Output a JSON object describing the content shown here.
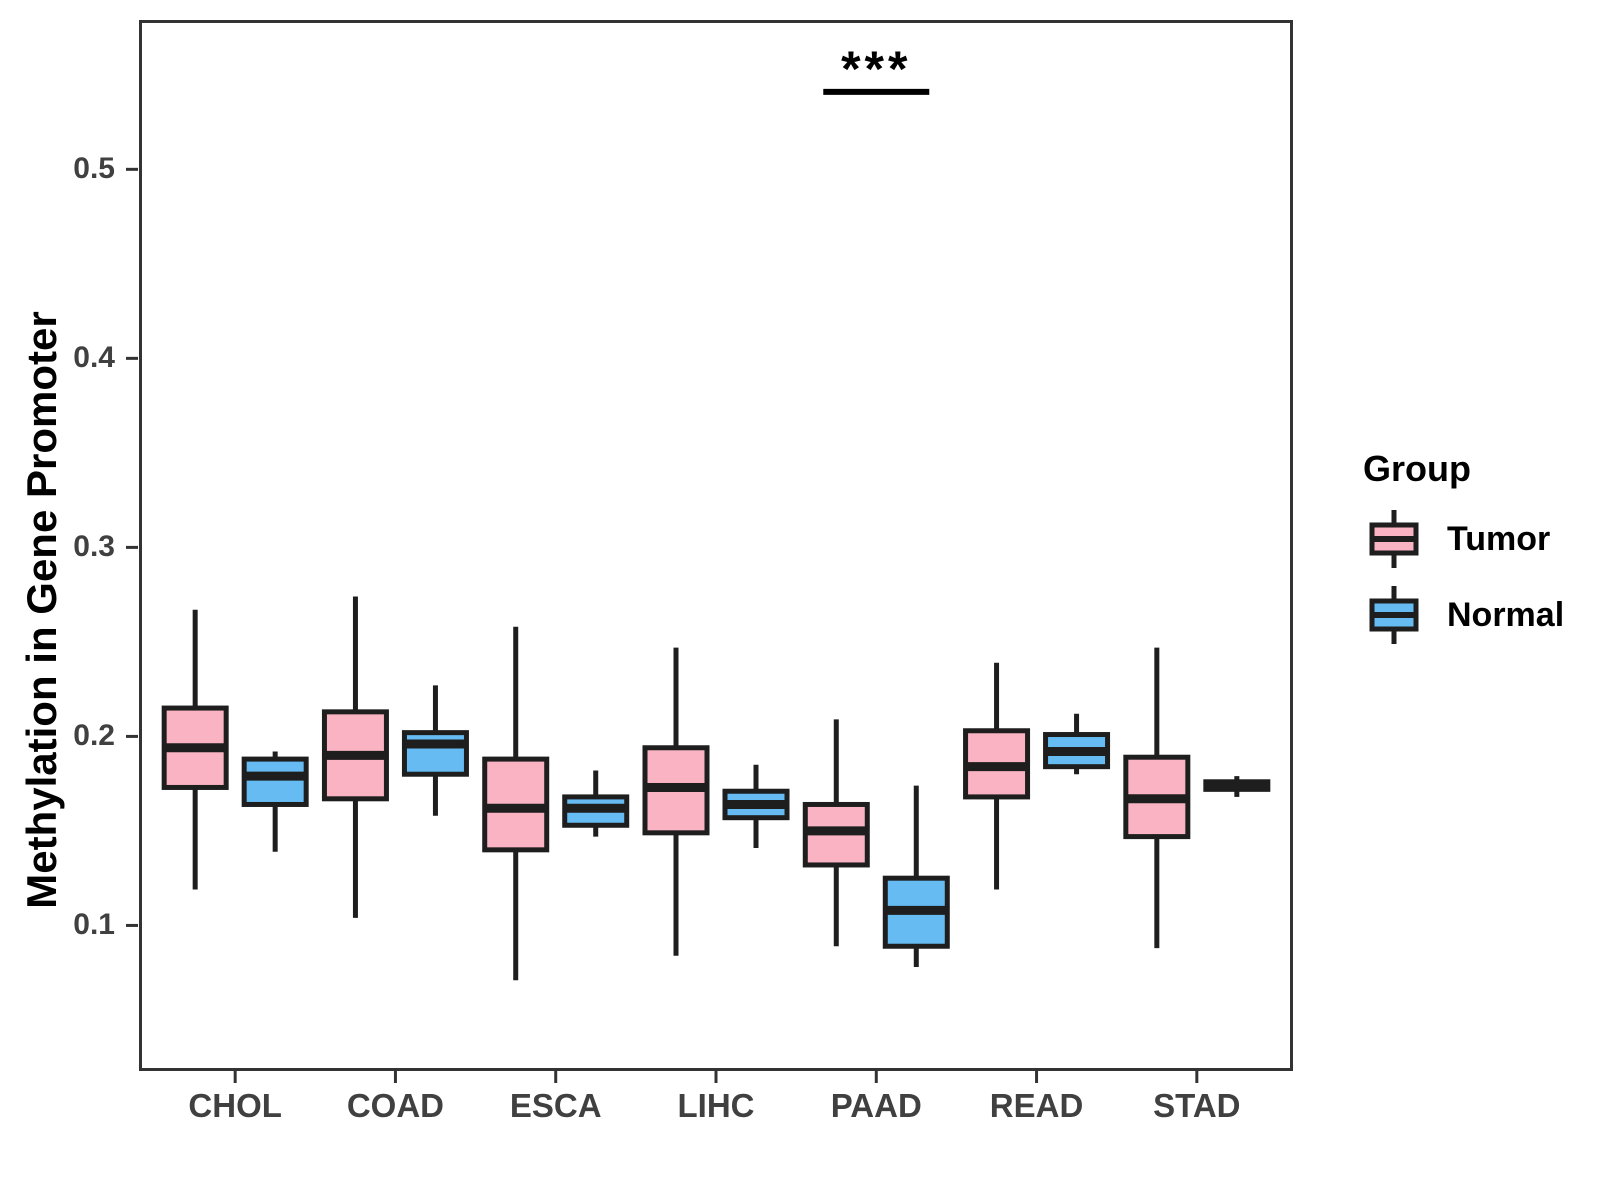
{
  "figure": {
    "ylabel": "Methylation in Gene Promoter"
  },
  "legend": {
    "title": "Group",
    "items": [
      {
        "label": "Tumor",
        "color": "#F9B3C2"
      },
      {
        "label": "Normal",
        "color": "#66BCF2"
      }
    ]
  },
  "style": {
    "box_border_color": "#1E1E1E",
    "axis_color": "#333333",
    "tick_text_color": "#404040"
  },
  "chart_data": {
    "type": "boxplot",
    "title": "",
    "xlabel": "",
    "ylabel": "Methylation in Gene Promoter",
    "categories": [
      "CHOL",
      "COAD",
      "ESCA",
      "LIHC",
      "PAAD",
      "READ",
      "STAD"
    ],
    "yticks": [
      0.1,
      0.2,
      0.3,
      0.4,
      0.5
    ],
    "ylim": [
      0.023,
      0.579
    ],
    "grid": false,
    "legend_position": "right",
    "series": [
      {
        "name": "Tumor",
        "color": "#F9B3C2",
        "boxes": [
          {
            "category": "CHOL",
            "min": 0.119,
            "q1": 0.173,
            "median": 0.194,
            "q3": 0.215,
            "max": 0.267
          },
          {
            "category": "COAD",
            "min": 0.104,
            "q1": 0.167,
            "median": 0.19,
            "q3": 0.213,
            "max": 0.274
          },
          {
            "category": "ESCA",
            "min": 0.071,
            "q1": 0.14,
            "median": 0.162,
            "q3": 0.188,
            "max": 0.258
          },
          {
            "category": "LIHC",
            "min": 0.084,
            "q1": 0.149,
            "median": 0.173,
            "q3": 0.194,
            "max": 0.247
          },
          {
            "category": "PAAD",
            "min": 0.089,
            "q1": 0.132,
            "median": 0.15,
            "q3": 0.164,
            "max": 0.209
          },
          {
            "category": "READ",
            "min": 0.119,
            "q1": 0.168,
            "median": 0.184,
            "q3": 0.203,
            "max": 0.239
          },
          {
            "category": "STAD",
            "min": 0.088,
            "q1": 0.147,
            "median": 0.167,
            "q3": 0.189,
            "max": 0.247
          }
        ]
      },
      {
        "name": "Normal",
        "color": "#66BCF2",
        "boxes": [
          {
            "category": "CHOL",
            "min": 0.139,
            "q1": 0.164,
            "median": 0.179,
            "q3": 0.188,
            "max": 0.192
          },
          {
            "category": "COAD",
            "min": 0.158,
            "q1": 0.18,
            "median": 0.196,
            "q3": 0.202,
            "max": 0.227
          },
          {
            "category": "ESCA",
            "min": 0.147,
            "q1": 0.153,
            "median": 0.162,
            "q3": 0.168,
            "max": 0.182
          },
          {
            "category": "LIHC",
            "min": 0.141,
            "q1": 0.157,
            "median": 0.164,
            "q3": 0.171,
            "max": 0.185
          },
          {
            "category": "PAAD",
            "min": 0.078,
            "q1": 0.089,
            "median": 0.108,
            "q3": 0.125,
            "max": 0.174
          },
          {
            "category": "READ",
            "min": 0.18,
            "q1": 0.184,
            "median": 0.192,
            "q3": 0.201,
            "max": 0.212
          },
          {
            "category": "STAD",
            "min": 0.168,
            "q1": 0.172,
            "median": 0.174,
            "q3": 0.176,
            "max": 0.179
          }
        ]
      }
    ],
    "annotation": {
      "text": "***",
      "category": "PAAD",
      "between": [
        "Tumor",
        "Normal"
      ],
      "y": 0.541
    }
  }
}
